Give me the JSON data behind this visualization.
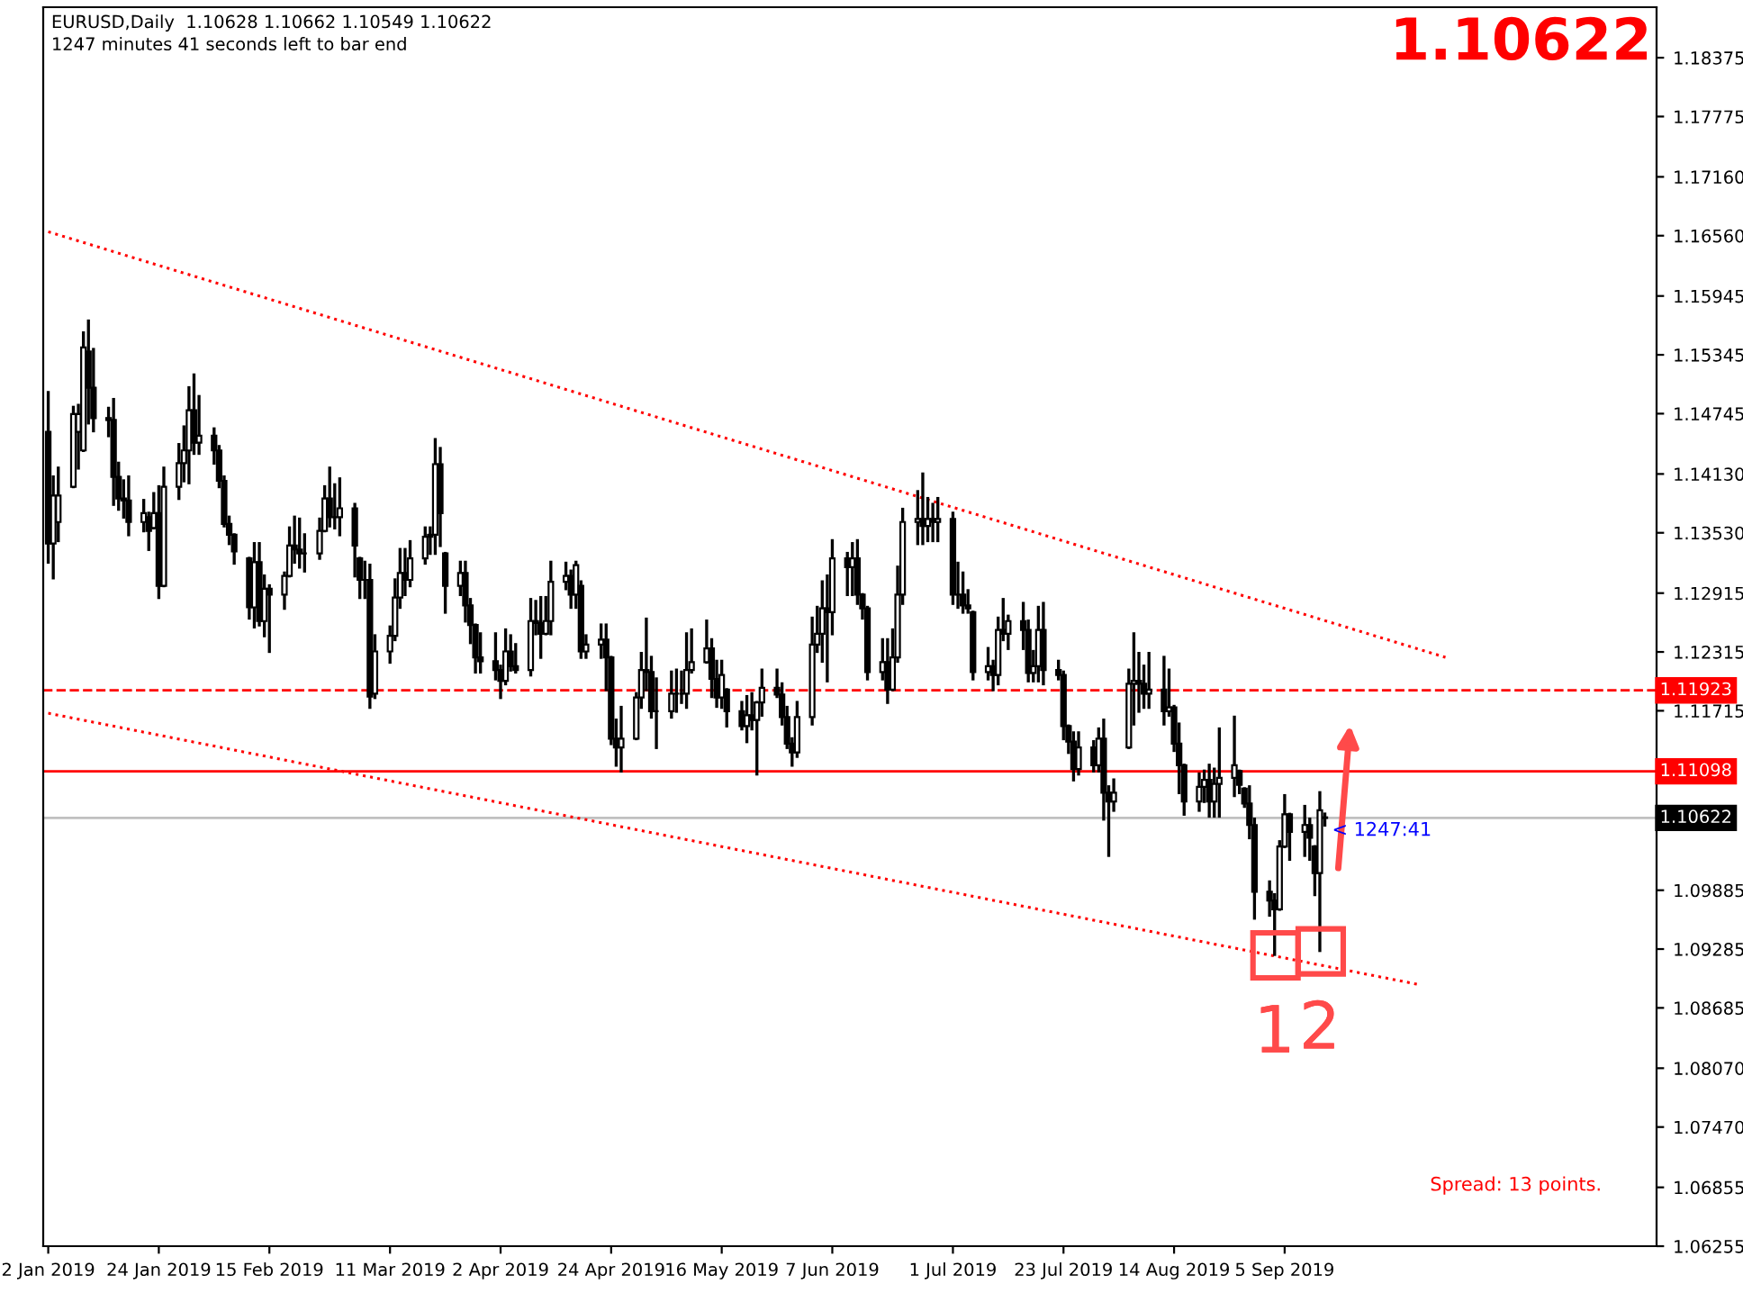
{
  "chart_data": {
    "type": "candlestick",
    "title": "EURUSD,Daily  1.10628 1.10662 1.10549 1.10622",
    "subtitle": "1247 minutes 41 seconds left to bar end",
    "color": "#000000",
    "x": [
      "2019-01-02",
      "2019-01-03",
      "2019-01-04",
      "2019-01-07",
      "2019-01-08",
      "2019-01-09",
      "2019-01-10",
      "2019-01-11",
      "2019-01-14",
      "2019-01-15",
      "2019-01-16",
      "2019-01-17",
      "2019-01-18",
      "2019-01-21",
      "2019-01-22",
      "2019-01-23",
      "2019-01-24",
      "2019-01-25",
      "2019-01-28",
      "2019-01-29",
      "2019-01-30",
      "2019-01-31",
      "2019-02-01",
      "2019-02-04",
      "2019-02-05",
      "2019-02-06",
      "2019-02-07",
      "2019-02-08",
      "2019-02-11",
      "2019-02-12",
      "2019-02-13",
      "2019-02-14",
      "2019-02-15",
      "2019-02-18",
      "2019-02-19",
      "2019-02-20",
      "2019-02-21",
      "2019-02-22",
      "2019-02-25",
      "2019-02-26",
      "2019-02-27",
      "2019-02-28",
      "2019-03-01",
      "2019-03-04",
      "2019-03-05",
      "2019-03-06",
      "2019-03-07",
      "2019-03-08",
      "2019-03-11",
      "2019-03-12",
      "2019-03-13",
      "2019-03-14",
      "2019-03-15",
      "2019-03-18",
      "2019-03-19",
      "2019-03-20",
      "2019-03-21",
      "2019-03-22",
      "2019-03-25",
      "2019-03-26",
      "2019-03-27",
      "2019-03-28",
      "2019-03-29",
      "2019-04-01",
      "2019-04-02",
      "2019-04-03",
      "2019-04-04",
      "2019-04-05",
      "2019-04-08",
      "2019-04-09",
      "2019-04-10",
      "2019-04-11",
      "2019-04-12",
      "2019-04-15",
      "2019-04-16",
      "2019-04-17",
      "2019-04-18",
      "2019-04-19",
      "2019-04-22",
      "2019-04-23",
      "2019-04-24",
      "2019-04-25",
      "2019-04-26",
      "2019-04-29",
      "2019-04-30",
      "2019-05-01",
      "2019-05-02",
      "2019-05-03",
      "2019-05-06",
      "2019-05-07",
      "2019-05-08",
      "2019-05-09",
      "2019-05-10",
      "2019-05-13",
      "2019-05-14",
      "2019-05-15",
      "2019-05-16",
      "2019-05-17",
      "2019-05-20",
      "2019-05-21",
      "2019-05-22",
      "2019-05-23",
      "2019-05-24",
      "2019-05-27",
      "2019-05-28",
      "2019-05-29",
      "2019-05-30",
      "2019-05-31",
      "2019-06-03",
      "2019-06-04",
      "2019-06-05",
      "2019-06-06",
      "2019-06-07",
      "2019-06-10",
      "2019-06-11",
      "2019-06-12",
      "2019-06-13",
      "2019-06-14",
      "2019-06-17",
      "2019-06-18",
      "2019-06-19",
      "2019-06-20",
      "2019-06-21",
      "2019-06-24",
      "2019-06-25",
      "2019-06-26",
      "2019-06-27",
      "2019-06-28",
      "2019-07-01",
      "2019-07-02",
      "2019-07-03",
      "2019-07-04",
      "2019-07-05",
      "2019-07-08",
      "2019-07-09",
      "2019-07-10",
      "2019-07-11",
      "2019-07-12",
      "2019-07-15",
      "2019-07-16",
      "2019-07-17",
      "2019-07-18",
      "2019-07-19",
      "2019-07-22",
      "2019-07-23",
      "2019-07-24",
      "2019-07-25",
      "2019-07-26",
      "2019-07-29",
      "2019-07-30",
      "2019-07-31",
      "2019-08-01",
      "2019-08-02",
      "2019-08-05",
      "2019-08-06",
      "2019-08-07",
      "2019-08-08",
      "2019-08-09",
      "2019-08-12",
      "2019-08-13",
      "2019-08-14",
      "2019-08-15",
      "2019-08-16",
      "2019-08-19",
      "2019-08-20",
      "2019-08-21",
      "2019-08-22",
      "2019-08-23",
      "2019-08-26",
      "2019-08-27",
      "2019-08-28",
      "2019-08-29",
      "2019-08-30",
      "2019-09-02",
      "2019-09-03",
      "2019-09-04",
      "2019-09-05",
      "2019-09-06",
      "2019-09-09",
      "2019-09-10",
      "2019-09-11",
      "2019-09-12",
      "2019-09-13"
    ],
    "ohlc": [
      [
        1.1456,
        1.1496,
        1.1323,
        1.1342
      ],
      [
        1.1342,
        1.141,
        1.1307,
        1.1391
      ],
      [
        1.1364,
        1.1419,
        1.1345,
        1.1391
      ],
      [
        1.14,
        1.1481,
        1.14,
        1.1474
      ],
      [
        1.1456,
        1.1483,
        1.1419,
        1.1474
      ],
      [
        1.1437,
        1.1557,
        1.1437,
        1.1542
      ],
      [
        1.1538,
        1.1569,
        1.1465,
        1.1501
      ],
      [
        1.1501,
        1.154,
        1.1457,
        1.147
      ],
      [
        1.147,
        1.148,
        1.1452,
        1.1468
      ],
      [
        1.1468,
        1.1489,
        1.1382,
        1.141
      ],
      [
        1.141,
        1.1424,
        1.1377,
        1.1388
      ],
      [
        1.1388,
        1.1406,
        1.1369,
        1.1386
      ],
      [
        1.1386,
        1.141,
        1.1351,
        1.1364
      ],
      [
        1.1364,
        1.1386,
        1.1355,
        1.1373
      ],
      [
        1.1369,
        1.1373,
        1.1336,
        1.1355
      ],
      [
        1.1358,
        1.1393,
        1.1358,
        1.1373
      ],
      [
        1.1373,
        1.14,
        1.1287,
        1.1299
      ],
      [
        1.1299,
        1.1419,
        1.1299,
        1.14
      ],
      [
        1.14,
        1.1443,
        1.1388,
        1.1424
      ],
      [
        1.1424,
        1.1461,
        1.1406,
        1.1437
      ],
      [
        1.1437,
        1.1501,
        1.1404,
        1.1478
      ],
      [
        1.1478,
        1.1514,
        1.1434,
        1.1445
      ],
      [
        1.1445,
        1.1492,
        1.1434,
        1.1452
      ],
      [
        1.1452,
        1.1459,
        1.1424,
        1.1437
      ],
      [
        1.1437,
        1.1441,
        1.14,
        1.1406
      ],
      [
        1.1406,
        1.141,
        1.136,
        1.1362
      ],
      [
        1.1362,
        1.1369,
        1.1342,
        1.1351
      ],
      [
        1.1351,
        1.1351,
        1.1322,
        1.1334
      ],
      [
        1.1327,
        1.1327,
        1.1266,
        1.1277
      ],
      [
        1.1277,
        1.1342,
        1.1257,
        1.1323
      ],
      [
        1.1323,
        1.1342,
        1.1259,
        1.1263
      ],
      [
        1.1263,
        1.1309,
        1.1248,
        1.1296
      ],
      [
        1.1296,
        1.1299,
        1.1232,
        1.129
      ],
      [
        1.129,
        1.1312,
        1.1276,
        1.1309
      ],
      [
        1.1309,
        1.1358,
        1.1309,
        1.134
      ],
      [
        1.134,
        1.1369,
        1.1323,
        1.1336
      ],
      [
        1.1336,
        1.1367,
        1.1318,
        1.1332
      ],
      [
        1.1332,
        1.1351,
        1.1314,
        1.1332
      ],
      [
        1.1332,
        1.1367,
        1.1327,
        1.1355
      ],
      [
        1.1355,
        1.14,
        1.1355,
        1.1388
      ],
      [
        1.1388,
        1.1419,
        1.136,
        1.1369
      ],
      [
        1.1369,
        1.1402,
        1.1358,
        1.1369
      ],
      [
        1.1369,
        1.1408,
        1.1351,
        1.1378
      ],
      [
        1.1378,
        1.1382,
        1.1309,
        1.134
      ],
      [
        1.1327,
        1.1327,
        1.1287,
        1.1305
      ],
      [
        1.1305,
        1.1323,
        1.1287,
        1.1305
      ],
      [
        1.1305,
        1.132,
        1.1175,
        1.1186
      ],
      [
        1.1189,
        1.1248,
        1.1185,
        1.1232
      ],
      [
        1.1232,
        1.1257,
        1.1221,
        1.1248
      ],
      [
        1.1248,
        1.1305,
        1.1244,
        1.1287
      ],
      [
        1.1287,
        1.1336,
        1.1277,
        1.1312
      ],
      [
        1.1312,
        1.1336,
        1.129,
        1.1305
      ],
      [
        1.1305,
        1.1344,
        1.1299,
        1.1327
      ],
      [
        1.1327,
        1.1358,
        1.1322,
        1.1349
      ],
      [
        1.1349,
        1.1358,
        1.1332,
        1.1351
      ],
      [
        1.1351,
        1.1448,
        1.1332,
        1.1423
      ],
      [
        1.1423,
        1.1439,
        1.134,
        1.1373
      ],
      [
        1.1332,
        1.1332,
        1.1272,
        1.1299
      ],
      [
        1.1299,
        1.1323,
        1.129,
        1.1312
      ],
      [
        1.1312,
        1.1323,
        1.1263,
        1.1279
      ],
      [
        1.1279,
        1.1285,
        1.1241,
        1.1259
      ],
      [
        1.1259,
        1.1259,
        1.1211,
        1.1226
      ],
      [
        1.1226,
        1.125,
        1.1211,
        1.1222
      ],
      [
        1.1222,
        1.125,
        1.1204,
        1.1213
      ],
      [
        1.1213,
        1.1217,
        1.1185,
        1.1202
      ],
      [
        1.1202,
        1.1254,
        1.1199,
        1.1232
      ],
      [
        1.1232,
        1.1248,
        1.1213,
        1.1217
      ],
      [
        1.1217,
        1.1239,
        1.1211,
        1.1213
      ],
      [
        1.1213,
        1.1285,
        1.1208,
        1.1263
      ],
      [
        1.1263,
        1.1283,
        1.125,
        1.1261
      ],
      [
        1.1261,
        1.1287,
        1.1226,
        1.125
      ],
      [
        1.125,
        1.1287,
        1.125,
        1.1263
      ],
      [
        1.1263,
        1.1323,
        1.125,
        1.1303
      ],
      [
        1.1303,
        1.1322,
        1.1296,
        1.1309
      ],
      [
        1.1309,
        1.1314,
        1.1277,
        1.129
      ],
      [
        1.129,
        1.1323,
        1.1277,
        1.132
      ],
      [
        1.1299,
        1.1303,
        1.1226,
        1.1232
      ],
      [
        1.1232,
        1.1248,
        1.1226,
        1.1239
      ],
      [
        1.1239,
        1.1259,
        1.1226,
        1.1244
      ],
      [
        1.1244,
        1.1259,
        1.1193,
        1.1226
      ],
      [
        1.1226,
        1.1226,
        1.1138,
        1.1143
      ],
      [
        1.1143,
        1.1162,
        1.1116,
        1.1134
      ],
      [
        1.1134,
        1.1175,
        1.111,
        1.1143
      ],
      [
        1.1143,
        1.1189,
        1.1143,
        1.1185
      ],
      [
        1.1185,
        1.123,
        1.1175,
        1.1213
      ],
      [
        1.1213,
        1.1265,
        1.1193,
        1.1211
      ],
      [
        1.1211,
        1.1226,
        1.1165,
        1.1171
      ],
      [
        1.1171,
        1.1204,
        1.1134,
        1.1171
      ],
      [
        1.1171,
        1.1211,
        1.1165,
        1.1189
      ],
      [
        1.1189,
        1.1213,
        1.1171,
        1.1189
      ],
      [
        1.1189,
        1.1211,
        1.118,
        1.1189
      ],
      [
        1.1189,
        1.125,
        1.1175,
        1.1213
      ],
      [
        1.1213,
        1.1254,
        1.1211,
        1.1221
      ],
      [
        1.1221,
        1.1263,
        1.1221,
        1.1235
      ],
      [
        1.1235,
        1.1244,
        1.1186,
        1.1204
      ],
      [
        1.1204,
        1.1222,
        1.1176,
        1.1185
      ],
      [
        1.1185,
        1.1222,
        1.1175,
        1.1208
      ],
      [
        1.1193,
        1.1193,
        1.1156,
        1.1171
      ],
      [
        1.1171,
        1.118,
        1.1153,
        1.1156
      ],
      [
        1.1156,
        1.1186,
        1.114,
        1.1167
      ],
      [
        1.1167,
        1.1189,
        1.1153,
        1.1162
      ],
      [
        1.1162,
        1.118,
        1.1107,
        1.118
      ],
      [
        1.118,
        1.1213,
        1.1167,
        1.1195
      ],
      [
        1.1195,
        1.1213,
        1.1186,
        1.1188
      ],
      [
        1.1188,
        1.1199,
        1.1158,
        1.1165
      ],
      [
        1.1165,
        1.1175,
        1.1134,
        1.1138
      ],
      [
        1.1138,
        1.1143,
        1.1116,
        1.1129
      ],
      [
        1.1129,
        1.118,
        1.1125,
        1.1165
      ],
      [
        1.1165,
        1.1266,
        1.1158,
        1.1239
      ],
      [
        1.1239,
        1.1277,
        1.1232,
        1.125
      ],
      [
        1.125,
        1.1303,
        1.1222,
        1.1276
      ],
      [
        1.1276,
        1.1309,
        1.1202,
        1.1272
      ],
      [
        1.1272,
        1.1345,
        1.125,
        1.1327
      ],
      [
        1.1327,
        1.1332,
        1.129,
        1.1318
      ],
      [
        1.1318,
        1.1342,
        1.129,
        1.1327
      ],
      [
        1.1327,
        1.1345,
        1.1281,
        1.129
      ],
      [
        1.129,
        1.129,
        1.1266,
        1.1276
      ],
      [
        1.1276,
        1.1277,
        1.1204,
        1.1211
      ],
      [
        1.1211,
        1.1244,
        1.1204,
        1.1221
      ],
      [
        1.1221,
        1.1244,
        1.118,
        1.1193
      ],
      [
        1.1193,
        1.1254,
        1.1193,
        1.1226
      ],
      [
        1.1226,
        1.1318,
        1.1222,
        1.129
      ],
      [
        1.129,
        1.1377,
        1.1281,
        1.1364
      ],
      [
        1.1364,
        1.1395,
        1.1342,
        1.1367
      ],
      [
        1.1367,
        1.1413,
        1.1342,
        1.136
      ],
      [
        1.136,
        1.1388,
        1.1345,
        1.1367
      ],
      [
        1.1367,
        1.1382,
        1.1345,
        1.1364
      ],
      [
        1.1364,
        1.1388,
        1.1345,
        1.1367
      ],
      [
        1.1367,
        1.1373,
        1.1281,
        1.129
      ],
      [
        1.129,
        1.1322,
        1.1277,
        1.129
      ],
      [
        1.129,
        1.1312,
        1.1272,
        1.1279
      ],
      [
        1.1279,
        1.1294,
        1.1272,
        1.1276
      ],
      [
        1.1272,
        1.1272,
        1.1204,
        1.1211
      ],
      [
        1.1211,
        1.1235,
        1.1204,
        1.1217
      ],
      [
        1.1217,
        1.1222,
        1.1193,
        1.1208
      ],
      [
        1.1208,
        1.1266,
        1.1199,
        1.1254
      ],
      [
        1.1254,
        1.1285,
        1.1244,
        1.125
      ],
      [
        1.125,
        1.1268,
        1.1235,
        1.1263
      ],
      [
        1.1263,
        1.1281,
        1.1235,
        1.1254
      ],
      [
        1.1254,
        1.1263,
        1.1202,
        1.121
      ],
      [
        1.121,
        1.1232,
        1.1202,
        1.1217
      ],
      [
        1.1217,
        1.1277,
        1.1202,
        1.1254
      ],
      [
        1.1254,
        1.1281,
        1.1199,
        1.1213
      ],
      [
        1.1213,
        1.1222,
        1.1204,
        1.1208
      ],
      [
        1.1208,
        1.1211,
        1.1143,
        1.1156
      ],
      [
        1.1156,
        1.1156,
        1.1129,
        1.114
      ],
      [
        1.114,
        1.1149,
        1.1101,
        1.1112
      ],
      [
        1.1112,
        1.1149,
        1.1107,
        1.1134
      ],
      [
        1.1134,
        1.114,
        1.111,
        1.1116
      ],
      [
        1.1116,
        1.1153,
        1.111,
        1.1143
      ],
      [
        1.1143,
        1.1162,
        1.1061,
        1.1088
      ],
      [
        1.1088,
        1.1094,
        1.1024,
        1.1079
      ],
      [
        1.1079,
        1.1101,
        1.107,
        1.1088
      ],
      [
        1.1134,
        1.1213,
        1.1134,
        1.1199
      ],
      [
        1.1199,
        1.125,
        1.1158,
        1.1202
      ],
      [
        1.1202,
        1.123,
        1.1171,
        1.1199
      ],
      [
        1.1199,
        1.1217,
        1.1175,
        1.1189
      ],
      [
        1.1189,
        1.123,
        1.1175,
        1.1193
      ],
      [
        1.1193,
        1.1226,
        1.1158,
        1.1171
      ],
      [
        1.1171,
        1.1213,
        1.1167,
        1.1175
      ],
      [
        1.1175,
        1.1176,
        1.1131,
        1.1138
      ],
      [
        1.1138,
        1.1158,
        1.1088,
        1.1116
      ],
      [
        1.1116,
        1.1116,
        1.1066,
        1.1079
      ],
      [
        1.1079,
        1.1107,
        1.107,
        1.1094
      ],
      [
        1.1094,
        1.111,
        1.1079,
        1.1101
      ],
      [
        1.1101,
        1.1116,
        1.1064,
        1.1079
      ],
      [
        1.1079,
        1.1112,
        1.1064,
        1.1097
      ],
      [
        1.1097,
        1.1153,
        1.1064,
        1.1103
      ],
      [
        1.1103,
        1.1165,
        1.1085,
        1.1116
      ],
      [
        1.111,
        1.111,
        1.1088,
        1.1096
      ],
      [
        1.1092,
        1.1092,
        1.1074,
        1.1077
      ],
      [
        1.1077,
        1.1094,
        1.1042,
        1.1055
      ],
      [
        1.1055,
        1.1061,
        1.096,
        1.0987
      ],
      [
        1.0987,
        1.0997,
        1.0963,
        1.0978
      ],
      [
        1.0978,
        1.0984,
        1.0923,
        1.0969
      ],
      [
        1.0969,
        1.1038,
        1.0969,
        1.1033
      ],
      [
        1.1033,
        1.1085,
        1.1033,
        1.1066
      ],
      [
        1.1066,
        1.1066,
        1.102,
        1.1048
      ],
      [
        1.1048,
        1.1074,
        1.1024,
        1.1055
      ],
      [
        1.1055,
        1.1061,
        1.102,
        1.1042
      ],
      [
        1.1033,
        1.1033,
        1.0984,
        1.1006
      ],
      [
        1.1006,
        1.1088,
        1.0927,
        1.107
      ],
      [
        1.10628,
        1.10662,
        1.10549,
        1.10622
      ]
    ],
    "series": [
      {
        "type": "line",
        "x": [
          "2019-01-02",
          "2019-10-07"
        ],
        "values": [
          1.166,
          1.1226
        ],
        "color": "#ff0000",
        "line_style": "dotted"
      },
      {
        "type": "line",
        "x": [
          "2019-01-02",
          "2019-10-02"
        ],
        "values": [
          1.1169,
          1.0892
        ],
        "color": "#ff0000",
        "line_style": "dotted"
      }
    ],
    "ref_lines": [
      {
        "axis": "y",
        "value": 1.11923,
        "label": "1.11923",
        "color": "#ff0000",
        "line_style": "dashed"
      },
      {
        "axis": "y",
        "value": 1.11098,
        "label": "1.11098",
        "color": "#ff0000",
        "line_style": "solid"
      },
      {
        "axis": "y",
        "value": 1.10622,
        "label": "1.10622",
        "color": "#c0c0c0",
        "line_style": "solid"
      }
    ],
    "annotations": [
      "1.10622",
      "Spread: 13 points.",
      {
        "text": "< 1247:41",
        "x": "2019-09-13",
        "y": 1.10622
      },
      {
        "text": "1",
        "x": "2019-09-03",
        "y": 1.0923
      },
      {
        "text": "2",
        "x": "2019-09-12",
        "y": 1.0927
      }
    ],
    "xlim": [
      "2019-01-01",
      "2019-11-18"
    ],
    "xticks": [
      {
        "value": "2019-01-02",
        "label": "2 Jan 2019"
      },
      {
        "value": "2019-01-24",
        "label": "24 Jan 2019"
      },
      {
        "value": "2019-02-15",
        "label": "15 Feb 2019"
      },
      {
        "value": "2019-03-11",
        "label": "11 Mar 2019"
      },
      {
        "value": "2019-04-02",
        "label": "2 Apr 2019"
      },
      {
        "value": "2019-04-24",
        "label": "24 Apr 2019"
      },
      {
        "value": "2019-05-16",
        "label": "16 May 2019"
      },
      {
        "value": "2019-06-07",
        "label": "7 Jun 2019"
      },
      {
        "value": "2019-07-01",
        "label": "1 Jul 2019"
      },
      {
        "value": "2019-07-23",
        "label": "23 Jul 2019"
      },
      {
        "value": "2019-08-14",
        "label": "14 Aug 2019"
      },
      {
        "value": "2019-09-05",
        "label": "5 Sep 2019"
      }
    ],
    "ylim": [
      1.06255,
      1.1889
    ],
    "yticks": [
      1.18375,
      1.17775,
      {
        "value": 1.1716,
        "label": "1.17160"
      },
      {
        "value": 1.1656,
        "label": "1.16560"
      },
      1.15945,
      1.15345,
      1.14745,
      {
        "value": 1.1413,
        "label": "1.14130"
      },
      {
        "value": 1.1353,
        "label": "1.13530"
      },
      1.12915,
      1.12315,
      1.11715,
      1.09885,
      1.09285,
      1.08685,
      {
        "value": 1.0807,
        "label": "1.08070"
      },
      {
        "value": 1.0747,
        "label": "1.07470"
      },
      1.06855,
      1.06255
    ]
  }
}
